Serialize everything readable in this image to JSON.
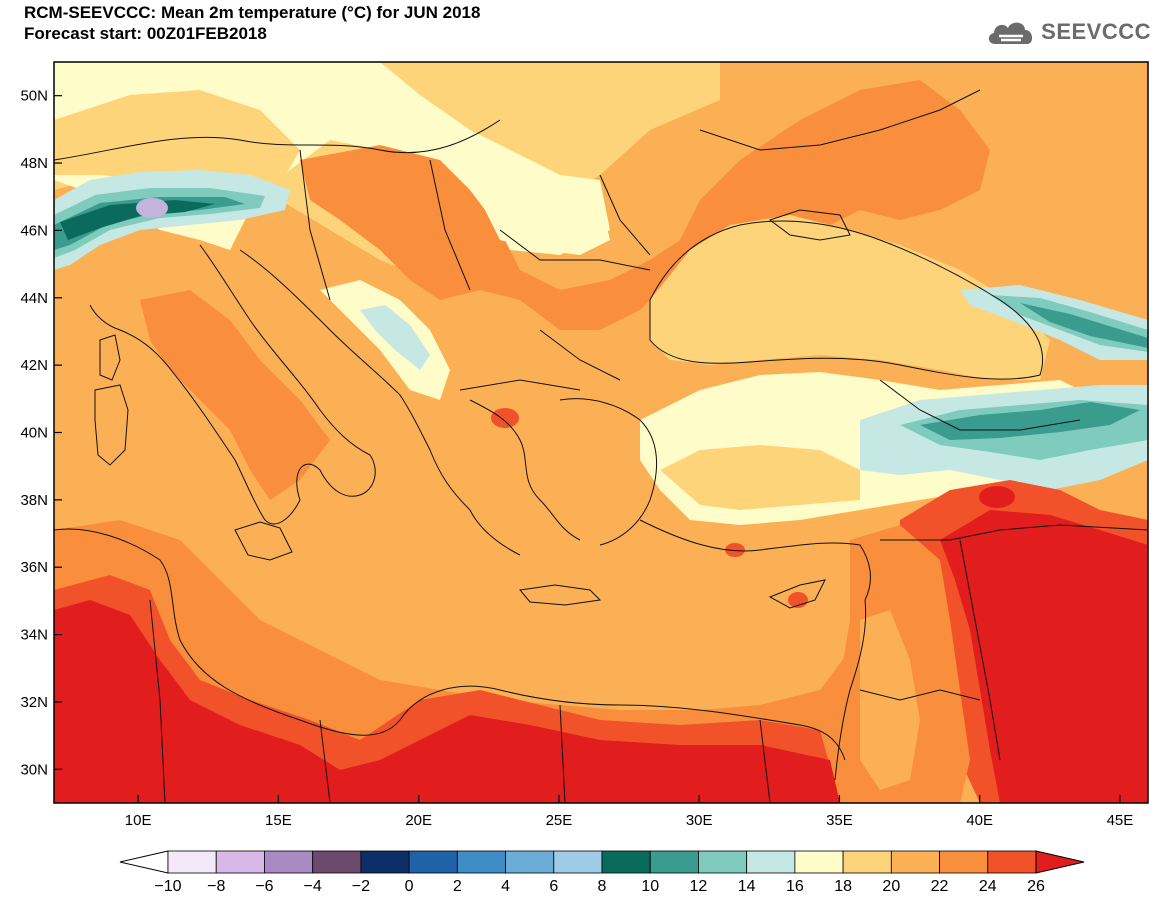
{
  "header": {
    "title": "RCM-SEEVCCC: Mean 2m temperature (°C) for JUN 2018",
    "subtitle": "Forecast start: 00Z01FEB2018"
  },
  "logo": {
    "text": "SEEVCCC",
    "icon": "cloud-logo-icon"
  },
  "map": {
    "lat_range": [
      29,
      51
    ],
    "lon_range": [
      7,
      46
    ],
    "lat_ticks": [
      "30N",
      "32N",
      "34N",
      "36N",
      "38N",
      "40N",
      "42N",
      "44N",
      "46N",
      "48N",
      "50N"
    ],
    "lon_ticks": [
      "10E",
      "15E",
      "20E",
      "25E",
      "30E",
      "35E",
      "40E",
      "45E"
    ],
    "colors": {
      "t16_18": "#fefcc8",
      "t18_20": "#fdd47a",
      "t20_22": "#fbb055",
      "t22_24": "#f98e3c",
      "t24_26": "#f2522a",
      "t26p": "#e11d1d",
      "t14_16": "#c6e8e4",
      "t12_14": "#7fcbbd",
      "t10_12": "#3a9b8f",
      "t8_10": "#0a6b5d",
      "cold_lilac": "#c3b4dc"
    }
  },
  "colorbar": {
    "labels": [
      "-10",
      "-8",
      "-6",
      "-4",
      "-2",
      "0",
      "2",
      "4",
      "6",
      "8",
      "10",
      "12",
      "14",
      "16",
      "18",
      "20",
      "22",
      "24",
      "26"
    ],
    "colors": [
      "#f3e8f8",
      "#d8b8e6",
      "#a98ac3",
      "#6b4a6e",
      "#0b2f66",
      "#1f62a8",
      "#3f8dc6",
      "#6aaed8",
      "#9ecce6",
      "#0a6b5d",
      "#3a9b8f",
      "#7fcbbd",
      "#c6e8e4",
      "#fefcc8",
      "#fdd47a",
      "#fbb055",
      "#f98e3c",
      "#f2522a"
    ],
    "low_color": "#ffffff",
    "high_color": "#e11d1d"
  }
}
